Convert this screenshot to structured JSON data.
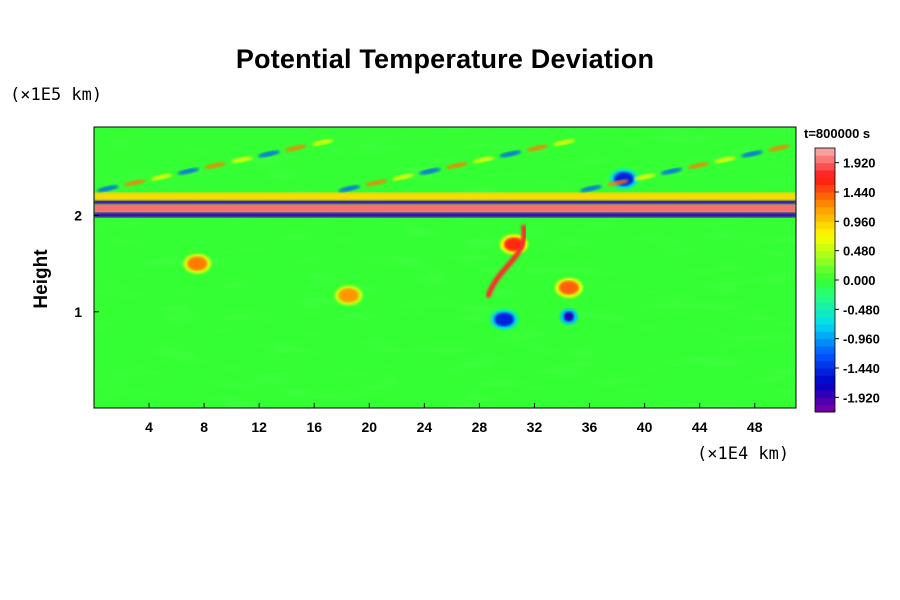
{
  "chart_data": {
    "type": "heatmap",
    "title": "Potential Temperature Deviation",
    "xlabel": "",
    "ylabel": "Height",
    "x_unit": "(×1E4 km)",
    "y_unit": "(×1E5 km)",
    "annotation": "t=800000 s",
    "xlim": [
      0,
      51
    ],
    "ylim": [
      0,
      2.92
    ],
    "x_ticks": [
      "4",
      "8",
      "12",
      "16",
      "20",
      "24",
      "28",
      "32",
      "36",
      "40",
      "44",
      "48"
    ],
    "x_tick_values": [
      4,
      8,
      12,
      16,
      20,
      24,
      28,
      32,
      36,
      40,
      44,
      48
    ],
    "y_ticks": [
      "1",
      "2"
    ],
    "y_tick_values": [
      1,
      2
    ],
    "colorbar": {
      "labels": [
        "1.920",
        "1.440",
        "0.960",
        "0.480",
        "0.000",
        "-0.480",
        "-0.960",
        "-1.440",
        "-1.920"
      ],
      "values": [
        1.92,
        1.44,
        0.96,
        0.48,
        0.0,
        -0.48,
        -0.96,
        -1.44,
        -1.92
      ],
      "min": -2.16,
      "max": 2.16
    },
    "colors": {
      "background": "#33ff33",
      "positive_max": "#f4b0b0",
      "positive_high": "#ff2020",
      "positive_mid": "#ffaa00",
      "near_zero": "#33ff33",
      "negative_mid": "#00ddee",
      "negative_high": "#0000cc",
      "negative_max": "#8800aa"
    },
    "features": [
      {
        "kind": "band",
        "x": [
          0,
          51
        ],
        "y": [
          2.03,
          2.12
        ],
        "value": 1.95
      },
      {
        "kind": "band",
        "x": [
          0,
          51
        ],
        "y": [
          1.98,
          2.03
        ],
        "value": -1.9
      },
      {
        "kind": "band",
        "x": [
          0,
          51
        ],
        "y": [
          2.12,
          2.16
        ],
        "value": -1.9
      },
      {
        "kind": "band",
        "x": [
          0,
          51
        ],
        "y": [
          2.16,
          2.24
        ],
        "value": 0.9
      },
      {
        "kind": "blob",
        "x": 7.5,
        "y": 1.5,
        "value": 1.3
      },
      {
        "kind": "blob",
        "x": 30.5,
        "y": 1.7,
        "value": 1.6
      },
      {
        "kind": "blob",
        "x": 34.5,
        "y": 1.25,
        "value": 1.4
      },
      {
        "kind": "blob",
        "x": 34.5,
        "y": 0.95,
        "value": -1.8
      },
      {
        "kind": "blob",
        "x": 29.8,
        "y": 0.92,
        "value": -1.5
      },
      {
        "kind": "blob",
        "x": 38.5,
        "y": 2.38,
        "value": -1.5
      },
      {
        "kind": "blob",
        "x": 18.5,
        "y": 1.17,
        "value": 1.2
      }
    ]
  }
}
